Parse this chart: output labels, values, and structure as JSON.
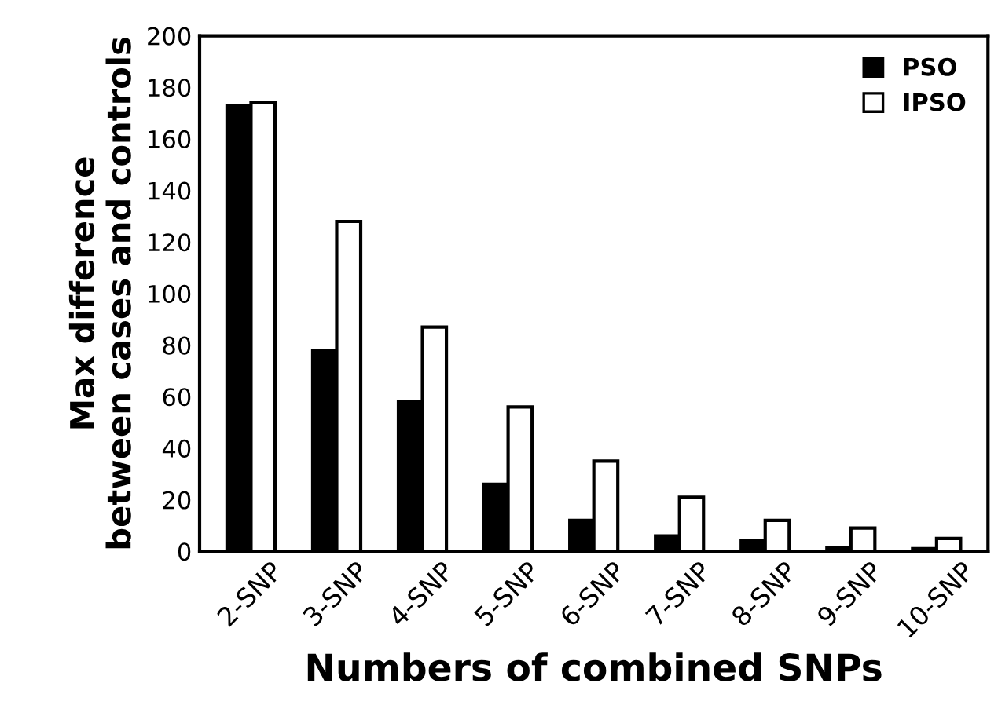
{
  "chart_data": {
    "type": "bar",
    "xlabel": "Numbers of combined SNPs",
    "ylabel": "Max difference\nbetween cases and controls",
    "categories": [
      "2-SNP",
      "3-SNP",
      "4-SNP",
      "5-SNP",
      "6-SNP",
      "7-SNP",
      "8-SNP",
      "9-SNP",
      "10-SNP"
    ],
    "series": [
      {
        "name": "PSO",
        "color": "#000000",
        "values": [
          173,
          78,
          58,
          26,
          12,
          6,
          4,
          1.5,
          1
        ]
      },
      {
        "name": "IPSO",
        "color": "#ffffff",
        "values": [
          174,
          128,
          87,
          56,
          35,
          21,
          12,
          9,
          5
        ]
      }
    ],
    "ylim": [
      0,
      200
    ],
    "yticks": [
      0,
      20,
      40,
      60,
      80,
      100,
      120,
      140,
      160,
      180,
      200
    ],
    "grid": false,
    "legend": "top right"
  }
}
